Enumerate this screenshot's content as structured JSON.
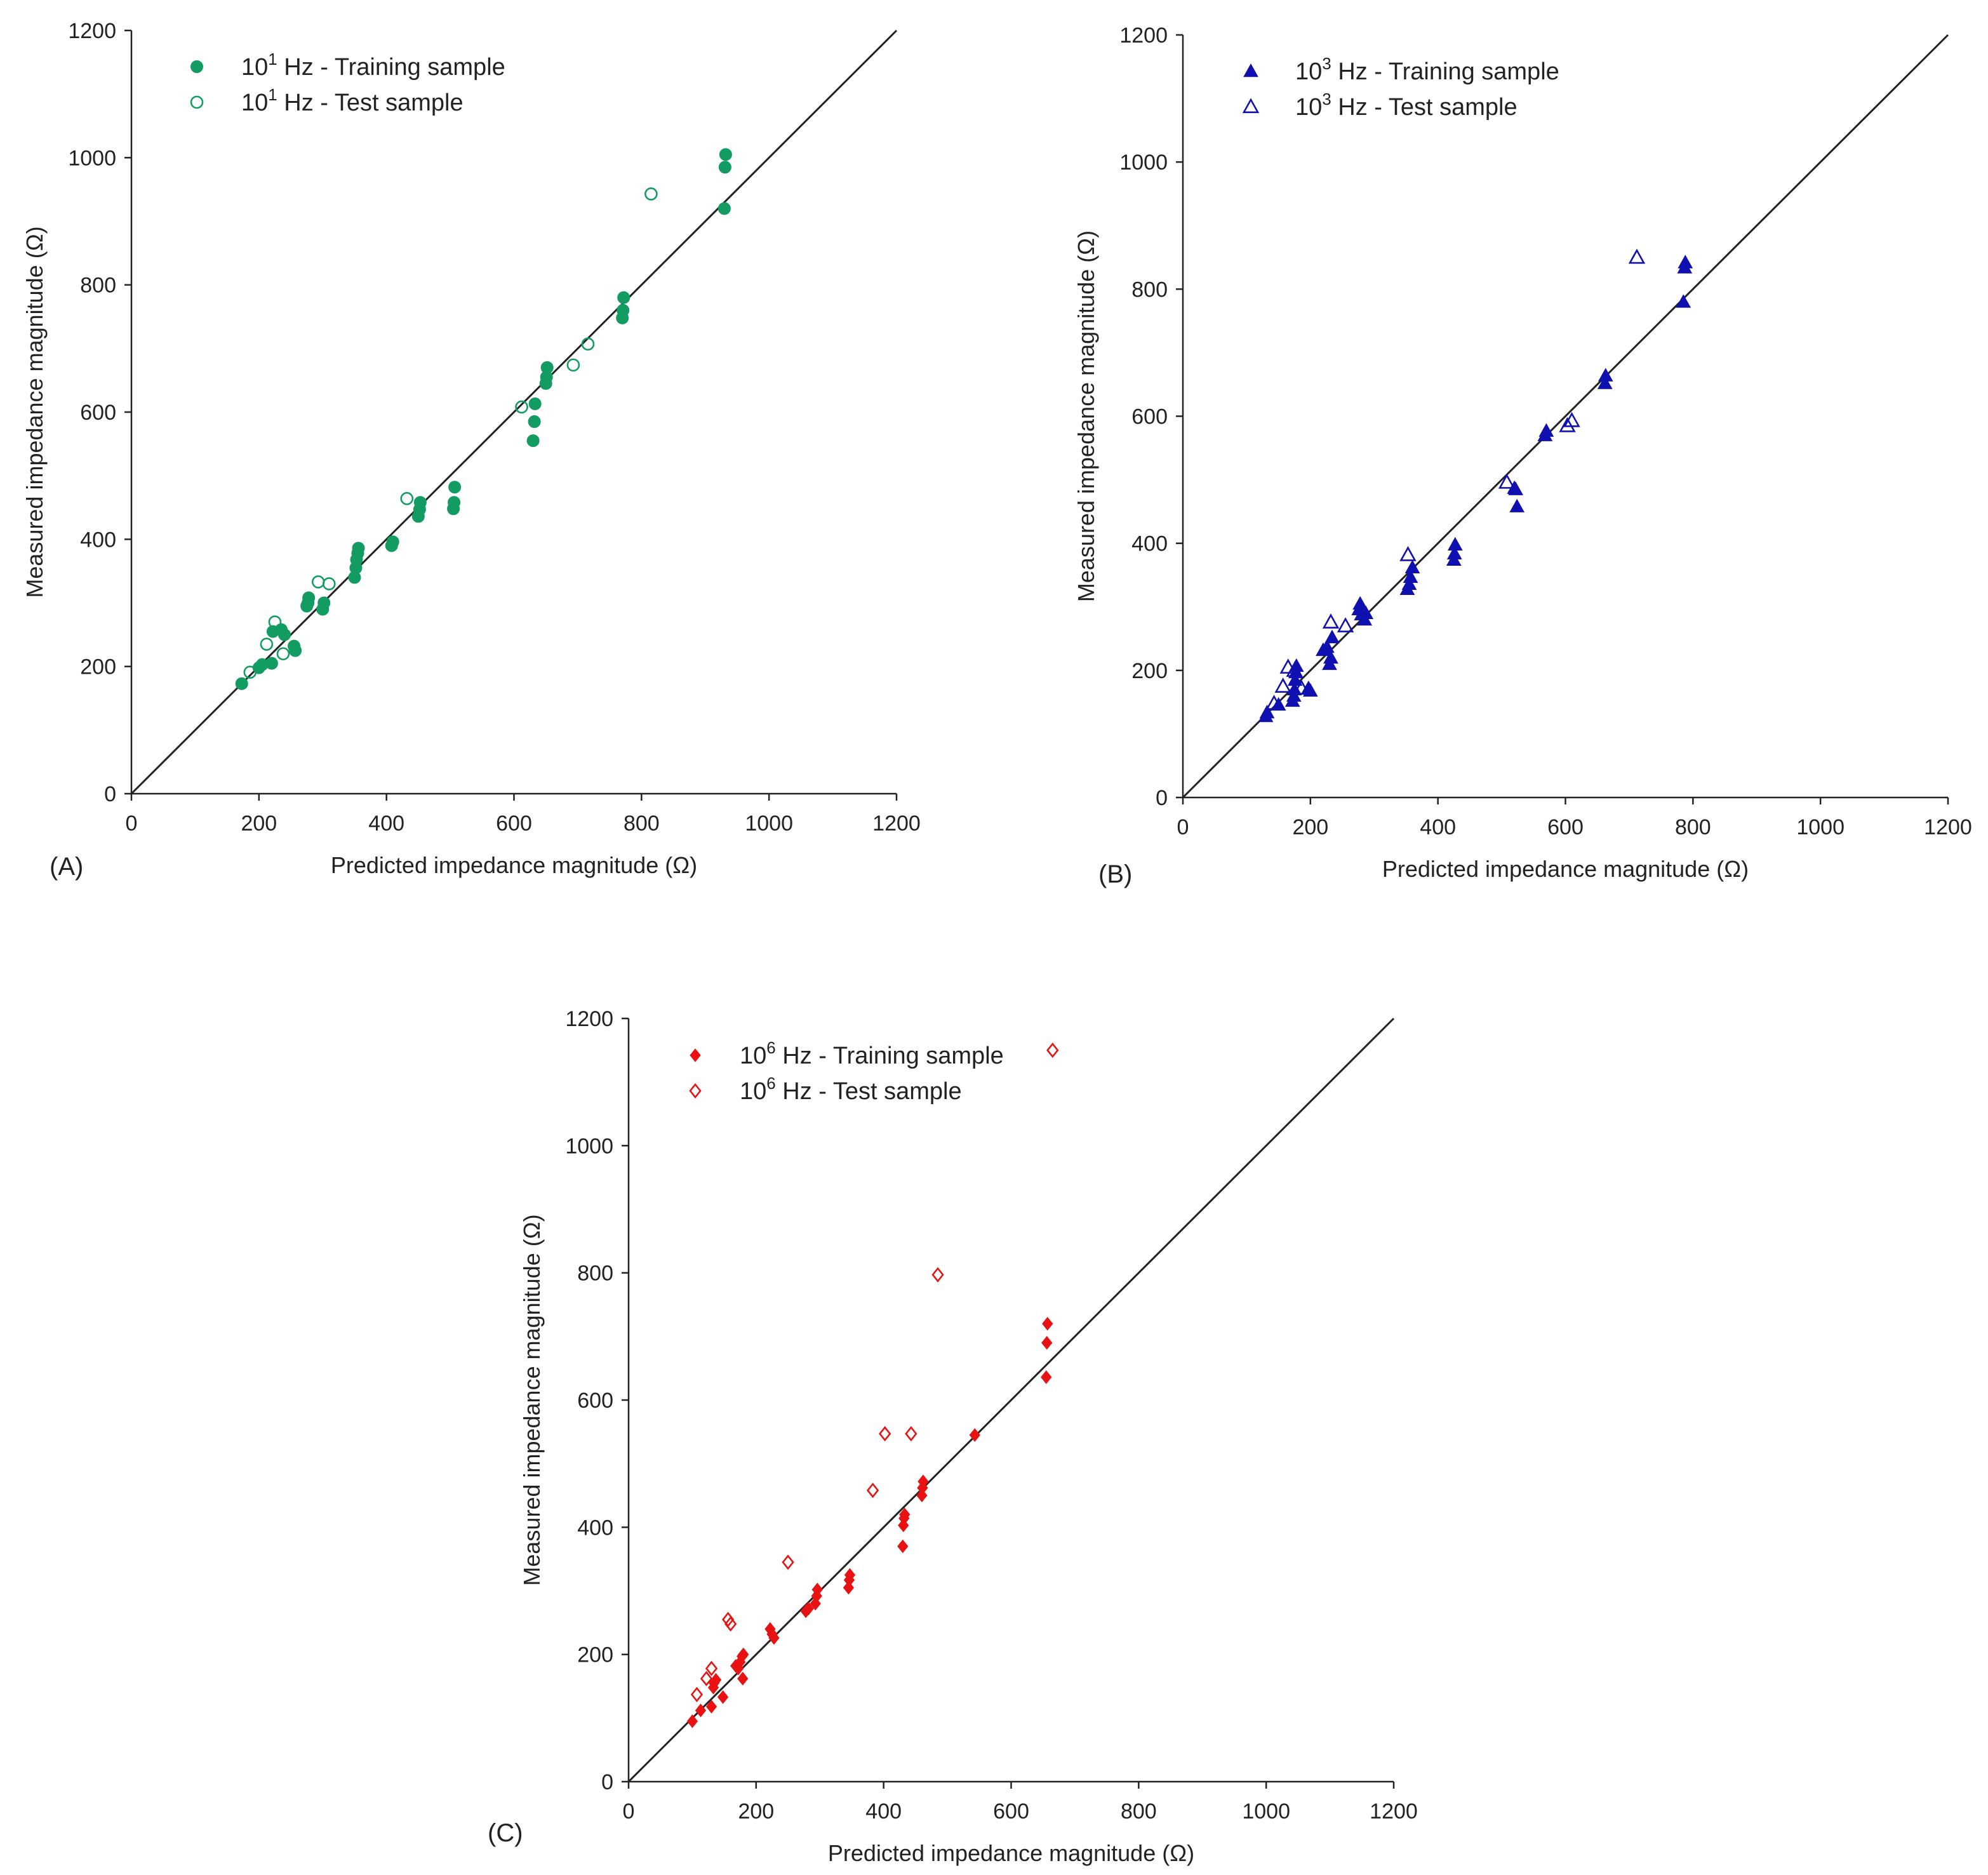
{
  "chart_data": [
    {
      "type": "scatter",
      "panel_label": "(A)",
      "xlabel": "Predicted impedance magnitude (Ω)",
      "ylabel": "Measured impedance magnitude (Ω)",
      "xlim": [
        0,
        1200
      ],
      "ylim": [
        0,
        1200
      ],
      "xticks": [
        "0",
        "200",
        "400",
        "600",
        "800",
        "1000",
        "1200"
      ],
      "yticks": [
        "0",
        "200",
        "400",
        "600",
        "800",
        "1000",
        "1200"
      ],
      "reference_line": "y = x",
      "color": "#129c62",
      "marker": "circle",
      "legend_position": "top-left",
      "series": [
        {
          "name_base": "10",
          "name_exp": "1",
          "name_rest": " Hz - Training sample",
          "fill": "solid",
          "points": [
            [
              173,
              173
            ],
            [
              200,
              198
            ],
            [
              205,
              203
            ],
            [
              220,
              205
            ],
            [
              222,
              255
            ],
            [
              235,
              258
            ],
            [
              240,
              250
            ],
            [
              255,
              232
            ],
            [
              257,
              225
            ],
            [
              275,
              295
            ],
            [
              277,
              300
            ],
            [
              278,
              308
            ],
            [
              300,
              290
            ],
            [
              302,
              300
            ],
            [
              350,
              340
            ],
            [
              352,
              355
            ],
            [
              353,
              368
            ],
            [
              355,
              378
            ],
            [
              356,
              386
            ],
            [
              408,
              390
            ],
            [
              410,
              396
            ],
            [
              450,
              436
            ],
            [
              452,
              447
            ],
            [
              453,
              458
            ],
            [
              505,
              448
            ],
            [
              506,
              458
            ],
            [
              507,
              482
            ],
            [
              630,
              555
            ],
            [
              632,
              585
            ],
            [
              633,
              613
            ],
            [
              650,
              645
            ],
            [
              651,
              655
            ],
            [
              652,
              670
            ],
            [
              770,
              748
            ],
            [
              771,
              760
            ],
            [
              772,
              780
            ],
            [
              930,
              920
            ],
            [
              931,
              985
            ],
            [
              932,
              1005
            ]
          ]
        },
        {
          "name_base": "10",
          "name_exp": "1",
          "name_rest": " Hz - Test sample",
          "fill": "open",
          "points": [
            [
              186,
              191
            ],
            [
              212,
              235
            ],
            [
              225,
              270
            ],
            [
              238,
              220
            ],
            [
              293,
              333
            ],
            [
              310,
              330
            ],
            [
              432,
              464
            ],
            [
              612,
              608
            ],
            [
              693,
              674
            ],
            [
              716,
              707
            ],
            [
              815,
              943
            ]
          ]
        }
      ]
    },
    {
      "type": "scatter",
      "panel_label": "(B)",
      "xlabel": "Predicted impedance magnitude (Ω)",
      "ylabel": "Measured impedance magnitude (Ω)",
      "xlim": [
        0,
        1200
      ],
      "ylim": [
        0,
        1200
      ],
      "xticks": [
        "0",
        "200",
        "400",
        "600",
        "800",
        "1000",
        "1200"
      ],
      "yticks": [
        "0",
        "200",
        "400",
        "600",
        "800",
        "1000",
        "1200"
      ],
      "reference_line": "y = x",
      "color": "#1010b0",
      "marker": "triangle",
      "legend_position": "top-left",
      "series": [
        {
          "name_base": "10",
          "name_exp": "3",
          "name_rest": " Hz - Training sample",
          "fill": "solid",
          "points": [
            [
              130,
              128
            ],
            [
              132,
              134
            ],
            [
              150,
              146
            ],
            [
              172,
              152
            ],
            [
              174,
              160
            ],
            [
              175,
              170
            ],
            [
              176,
              185
            ],
            [
              177,
              197
            ],
            [
              178,
              207
            ],
            [
              197,
              172
            ],
            [
              200,
              168
            ],
            [
              220,
              232
            ],
            [
              226,
              237
            ],
            [
              230,
              210
            ],
            [
              232,
              220
            ],
            [
              234,
              252
            ],
            [
              276,
              296
            ],
            [
              278,
              305
            ],
            [
              280,
              288
            ],
            [
              285,
              280
            ],
            [
              287,
              290
            ],
            [
              352,
              328
            ],
            [
              355,
              336
            ],
            [
              357,
              347
            ],
            [
              360,
              362
            ],
            [
              425,
              374
            ],
            [
              426,
              384
            ],
            [
              427,
              398
            ],
            [
              520,
              487
            ],
            [
              522,
              485
            ],
            [
              524,
              458
            ],
            [
              568,
              570
            ],
            [
              570,
              577
            ],
            [
              662,
              652
            ],
            [
              663,
              664
            ],
            [
              785,
              780
            ],
            [
              787,
              834
            ],
            [
              788,
              842
            ]
          ]
        },
        {
          "name_base": "10",
          "name_exp": "3",
          "name_rest": " Hz - Test sample",
          "fill": "open",
          "points": [
            [
              143,
              148
            ],
            [
              157,
              175
            ],
            [
              165,
              205
            ],
            [
              175,
              200
            ],
            [
              186,
              172
            ],
            [
              232,
              276
            ],
            [
              255,
              270
            ],
            [
              353,
              382
            ],
            [
              508,
              496
            ],
            [
              603,
              585
            ],
            [
              610,
              593
            ],
            [
              712,
              850
            ]
          ]
        }
      ]
    },
    {
      "type": "scatter",
      "panel_label": "(C)",
      "xlabel": "Predicted impedance magnitude (Ω)",
      "ylabel": "Measured impedance magnitude (Ω)",
      "xlim": [
        0,
        1200
      ],
      "ylim": [
        0,
        1200
      ],
      "xticks": [
        "0",
        "200",
        "400",
        "600",
        "800",
        "1000",
        "1200"
      ],
      "yticks": [
        "0",
        "200",
        "400",
        "600",
        "800",
        "1000",
        "1200"
      ],
      "reference_line": "y = x",
      "color": "#e81212",
      "marker": "diamond",
      "legend_position": "top-left",
      "series": [
        {
          "name_base": "10",
          "name_exp": "6",
          "name_rest": " Hz - Training sample",
          "fill": "solid",
          "points": [
            [
              100,
              95
            ],
            [
              113,
              112
            ],
            [
              130,
              118
            ],
            [
              133,
              148
            ],
            [
              134,
              155
            ],
            [
              137,
              160
            ],
            [
              148,
              133
            ],
            [
              168,
              182
            ],
            [
              172,
              178
            ],
            [
              175,
              188
            ],
            [
              178,
              197
            ],
            [
              179,
              162
            ],
            [
              180,
              200
            ],
            [
              222,
              240
            ],
            [
              225,
              232
            ],
            [
              228,
              226
            ],
            [
              278,
              268
            ],
            [
              282,
              272
            ],
            [
              293,
              280
            ],
            [
              295,
              292
            ],
            [
              296,
              302
            ],
            [
              345,
              305
            ],
            [
              346,
              317
            ],
            [
              347,
              325
            ],
            [
              430,
              370
            ],
            [
              431,
              403
            ],
            [
              432,
              414
            ],
            [
              433,
              420
            ],
            [
              460,
              450
            ],
            [
              461,
              462
            ],
            [
              462,
              472
            ],
            [
              543,
              545
            ],
            [
              655,
              636
            ],
            [
              656,
              690
            ],
            [
              657,
              720
            ]
          ]
        },
        {
          "name_base": "10",
          "name_exp": "6",
          "name_rest": " Hz - Test sample",
          "fill": "open",
          "points": [
            [
              107,
              137
            ],
            [
              122,
              162
            ],
            [
              130,
              178
            ],
            [
              156,
              255
            ],
            [
              160,
              248
            ],
            [
              250,
              345
            ],
            [
              383,
              458
            ],
            [
              402,
              547
            ],
            [
              443,
              547
            ],
            [
              485,
              797
            ],
            [
              665,
              1150
            ]
          ]
        }
      ]
    }
  ]
}
